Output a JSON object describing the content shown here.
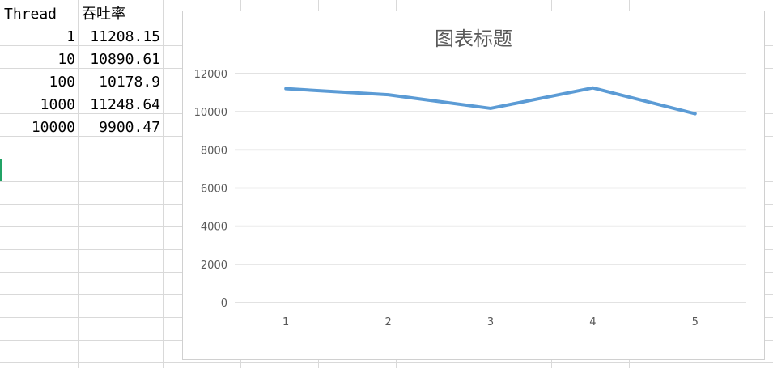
{
  "spreadsheet": {
    "headers": [
      "Thread",
      "吞吐率"
    ],
    "rows": [
      {
        "thread": "1",
        "throughput": "11208.15"
      },
      {
        "thread": "10",
        "throughput": "10890.61"
      },
      {
        "thread": "100",
        "throughput": "10178.9"
      },
      {
        "thread": "1000",
        "throughput": "11248.64"
      },
      {
        "thread": "10000",
        "throughput": "9900.47"
      }
    ]
  },
  "chart_data": {
    "type": "line",
    "title": "图表标题",
    "categories": [
      "1",
      "2",
      "3",
      "4",
      "5"
    ],
    "series": [
      {
        "values": [
          11208.15,
          10890.61,
          10178.9,
          11248.64,
          9900.47
        ],
        "color": "#5b9bd5"
      }
    ],
    "ylim": [
      0,
      12000
    ],
    "yticks": [
      "0",
      "2000",
      "4000",
      "6000",
      "8000",
      "10000",
      "12000"
    ],
    "grid": true,
    "gridline_color": "#d9d9d9",
    "legend": "none"
  }
}
